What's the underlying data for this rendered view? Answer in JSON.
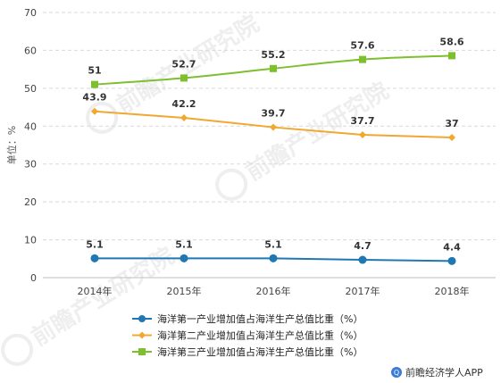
{
  "chart_data": {
    "type": "line",
    "categories": [
      "2014年",
      "2015年",
      "2016年",
      "2017年",
      "2018年"
    ],
    "series": [
      {
        "name": "海洋第一产业增加值占海洋生产总值比重（%）",
        "values": [
          5.1,
          5.1,
          5.1,
          4.7,
          4.4
        ],
        "color": "#1f77b4",
        "marker": "circle"
      },
      {
        "name": "海洋第二产业增加值占海洋生产总值比重（%）",
        "values": [
          43.9,
          42.2,
          39.7,
          37.7,
          37
        ],
        "color": "#f0a830",
        "marker": "diamond"
      },
      {
        "name": "海洋第三产业增加值占海洋生产总值比重（%）",
        "values": [
          51,
          52.7,
          55.2,
          57.6,
          58.6
        ],
        "color": "#7dbf2e",
        "marker": "square"
      }
    ],
    "ylabel": "单位：%",
    "ylim": [
      0,
      70
    ],
    "yticks": [
      0,
      10,
      20,
      30,
      40,
      50,
      60,
      70
    ],
    "grid": true,
    "legend": "bottom"
  },
  "source": "前瞻经济学人APP",
  "watermark": "前瞻产业研究院"
}
